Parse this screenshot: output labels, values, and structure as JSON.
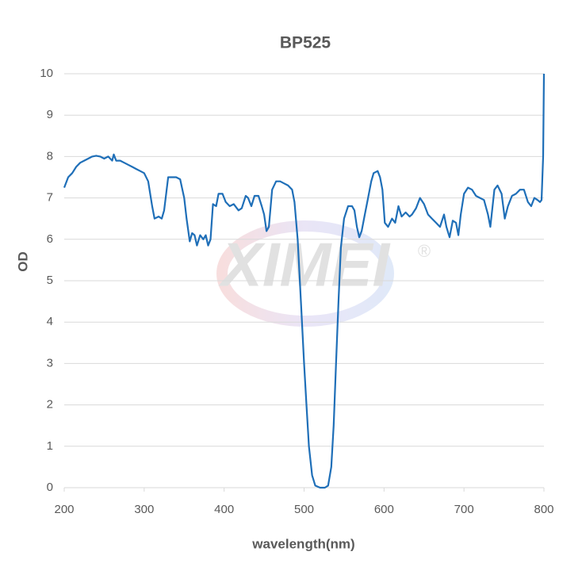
{
  "chart_data": {
    "type": "line",
    "title": "BP525",
    "x_label": "wavelength(nm)",
    "y_label": "OD",
    "watermark": [
      "XIMEI",
      "®"
    ],
    "xlim": [
      200,
      800
    ],
    "ylim": [
      0,
      10
    ],
    "xticks": [
      200,
      300,
      400,
      500,
      600,
      700,
      800
    ],
    "yticks": [
      0,
      1,
      2,
      3,
      4,
      5,
      6,
      7,
      8,
      9,
      10
    ],
    "grid": true,
    "x": [
      200,
      205,
      210,
      215,
      220,
      225,
      230,
      235,
      240,
      245,
      250,
      255,
      260,
      262,
      265,
      270,
      275,
      280,
      285,
      290,
      295,
      300,
      305,
      310,
      313,
      318,
      322,
      325,
      330,
      335,
      340,
      345,
      350,
      353,
      357,
      360,
      363,
      366,
      370,
      374,
      377,
      380,
      383,
      386,
      390,
      393,
      398,
      402,
      407,
      412,
      418,
      422,
      427,
      430,
      434,
      438,
      443,
      447,
      450,
      453,
      456,
      460,
      465,
      470,
      475,
      480,
      485,
      488,
      492,
      496,
      500,
      503,
      506,
      510,
      514,
      520,
      526,
      530,
      534,
      537,
      540,
      543,
      546,
      550,
      555,
      560,
      563,
      566,
      569,
      572,
      576,
      580,
      584,
      587,
      592,
      595,
      598,
      601,
      605,
      610,
      614,
      618,
      622,
      627,
      632,
      635,
      640,
      645,
      650,
      655,
      660,
      665,
      670,
      675,
      678,
      682,
      686,
      690,
      693,
      696,
      700,
      705,
      710,
      715,
      720,
      725,
      730,
      733,
      738,
      742,
      747,
      751,
      755,
      760,
      765,
      770,
      775,
      780,
      784,
      788,
      792,
      795,
      797,
      799,
      800
    ],
    "series": [
      {
        "name": "BP525",
        "color": "#1f6fb8",
        "values": [
          7.25,
          7.5,
          7.6,
          7.75,
          7.85,
          7.9,
          7.95,
          8.0,
          8.02,
          8.0,
          7.95,
          8.0,
          7.9,
          8.05,
          7.9,
          7.9,
          7.85,
          7.8,
          7.75,
          7.7,
          7.65,
          7.6,
          7.4,
          6.8,
          6.5,
          6.55,
          6.5,
          6.7,
          7.5,
          7.5,
          7.5,
          7.45,
          7.0,
          6.5,
          5.95,
          6.15,
          6.1,
          5.85,
          6.1,
          6.0,
          6.1,
          5.85,
          6.0,
          6.85,
          6.8,
          7.1,
          7.1,
          6.9,
          6.8,
          6.85,
          6.7,
          6.75,
          7.05,
          7.0,
          6.8,
          7.05,
          7.05,
          6.8,
          6.6,
          6.2,
          6.3,
          7.2,
          7.4,
          7.4,
          7.35,
          7.3,
          7.2,
          6.9,
          6.0,
          4.5,
          3.0,
          2.0,
          1.0,
          0.3,
          0.05,
          0,
          0,
          0.05,
          0.5,
          1.5,
          3.0,
          4.5,
          5.8,
          6.5,
          6.8,
          6.8,
          6.7,
          6.3,
          6.05,
          6.2,
          6.6,
          7.0,
          7.4,
          7.6,
          7.65,
          7.5,
          7.2,
          6.4,
          6.3,
          6.5,
          6.4,
          6.8,
          6.55,
          6.65,
          6.55,
          6.6,
          6.75,
          7.0,
          6.85,
          6.6,
          6.5,
          6.4,
          6.3,
          6.6,
          6.3,
          6.05,
          6.45,
          6.4,
          6.1,
          6.6,
          7.1,
          7.25,
          7.2,
          7.05,
          7.0,
          6.95,
          6.6,
          6.3,
          7.2,
          7.3,
          7.1,
          6.5,
          6.8,
          7.05,
          7.1,
          7.2,
          7.2,
          6.9,
          6.8,
          7.0,
          6.95,
          6.9,
          6.95,
          8.0,
          10
        ]
      }
    ]
  }
}
